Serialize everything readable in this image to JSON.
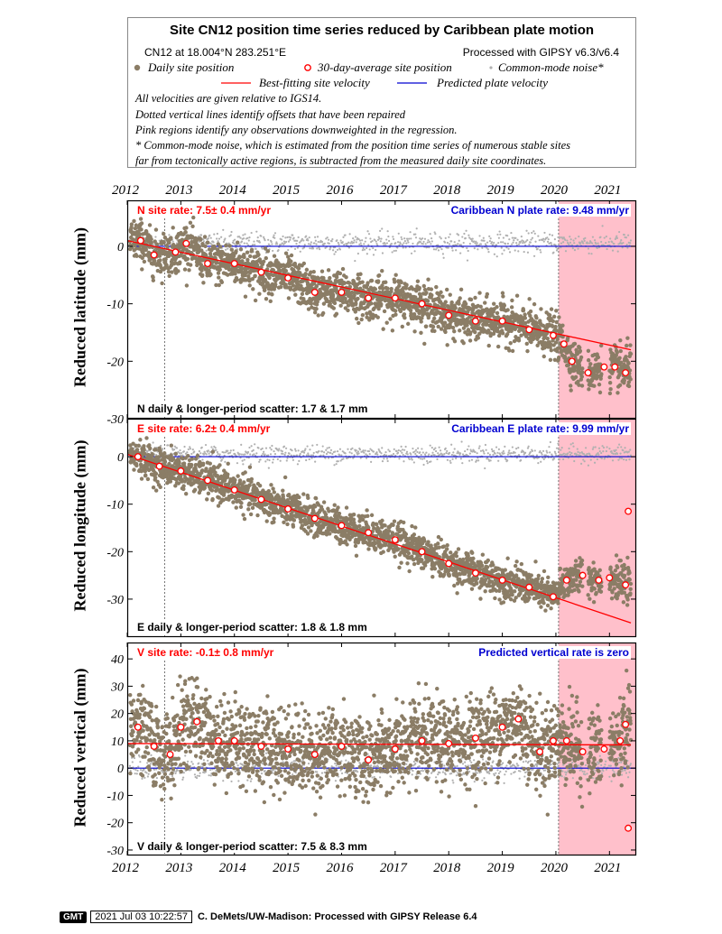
{
  "header": {
    "title": "Site CN12 position time series reduced by Caribbean plate motion",
    "location": "CN12 at 18.004°N 283.251°E",
    "processing": "Processed with GIPSY v6.3/v6.4",
    "legend": {
      "daily": "Daily site position",
      "avg": "30-day-average site position",
      "cmn": "Common-mode noise*",
      "best": "Best-fitting site velocity",
      "pred": "Predicted plate velocity"
    },
    "notes": [
      "All velocities are given relative to IGS14.",
      "Dotted vertical lines identify offsets that have been repaired",
      "Pink regions identify any observations downweighted in the regression.",
      "* Common-mode noise, which is estimated from the position time series of numerous stable sites",
      "far from tectonically active regions, is subtracted from the measured daily site coordinates."
    ]
  },
  "years": [
    "2012",
    "2013",
    "2014",
    "2015",
    "2016",
    "2017",
    "2018",
    "2019",
    "2020",
    "2021"
  ],
  "footer": {
    "logo": "GMT",
    "timestamp": "2021 Jul 03 10:22:57",
    "credit": "C. DeMets/UW-Madison: Processed with GIPSY Release 6.4"
  },
  "colors": {
    "daily": "#8b7d66",
    "avg_edge": "#ff0000",
    "cmn": "#b0b0b0",
    "best": "#ff0000",
    "pred": "#0000d0",
    "pink": "#ffc0cb"
  },
  "chart_data": [
    {
      "type": "scatter",
      "component": "N",
      "ylabel": "Reduced latitude (mm)",
      "ylim": [
        -30,
        8
      ],
      "yticks": [
        0,
        -10,
        -20,
        -30
      ],
      "xlim": [
        2012.0,
        2021.5
      ],
      "site_rate": "N site rate:  7.5± 0.4 mm/yr",
      "plate_rate": "Caribbean N plate rate: 9.48 mm/yr",
      "scatter": "N daily & longer-period scatter:   1.7 &   1.7 mm",
      "best_fit": {
        "x": [
          2012.0,
          2021.4
        ],
        "y": [
          1.0,
          -18.0
        ]
      },
      "predicted": {
        "x": [
          2012.0,
          2021.5
        ],
        "y": [
          0,
          0
        ]
      },
      "offset_epoch": 2012.7,
      "downweight": [
        2020.05,
        2021.5
      ],
      "avg_points": {
        "x": [
          2012.25,
          2012.5,
          2012.9,
          2013.1,
          2013.5,
          2014.0,
          2014.5,
          2015.0,
          2015.5,
          2016.0,
          2016.5,
          2017.0,
          2017.5,
          2018.0,
          2018.5,
          2019.0,
          2019.5,
          2019.95,
          2020.15,
          2020.3,
          2020.6,
          2020.9,
          2021.1,
          2021.3
        ],
        "y": [
          1.0,
          -1.5,
          -1.0,
          0.5,
          -3.0,
          -3.0,
          -4.5,
          -5.5,
          -8.0,
          -8.0,
          -9.0,
          -9.0,
          -10.0,
          -12.0,
          -13.0,
          -13.0,
          -14.5,
          -15.5,
          -17.0,
          -20.0,
          -22.0,
          -21.0,
          -21.0,
          -22.0
        ]
      }
    },
    {
      "type": "scatter",
      "component": "E",
      "ylabel": "Reduced longitude (mm)",
      "ylim": [
        -38,
        8
      ],
      "yticks": [
        0,
        -10,
        -20,
        -30
      ],
      "xlim": [
        2012.0,
        2021.5
      ],
      "site_rate": "E site rate:  6.2± 0.4 mm/yr",
      "plate_rate": "Caribbean E plate rate: 9.99 mm/yr",
      "scatter": "E daily & longer-period scatter:   1.8 &   1.8 mm",
      "best_fit": {
        "x": [
          2012.0,
          2021.4
        ],
        "y": [
          0.5,
          -35.0
        ]
      },
      "predicted": {
        "x": [
          2012.0,
          2021.5
        ],
        "y": [
          0,
          0
        ]
      },
      "offset_epoch": 2012.7,
      "downweight": [
        2020.05,
        2021.5
      ],
      "avg_points": {
        "x": [
          2012.2,
          2012.6,
          2013.0,
          2013.5,
          2014.0,
          2014.5,
          2015.0,
          2015.5,
          2016.0,
          2016.5,
          2017.0,
          2017.5,
          2018.0,
          2018.5,
          2019.0,
          2019.5,
          2019.95,
          2020.2,
          2020.5,
          2020.8,
          2021.0,
          2021.3,
          2021.35
        ],
        "y": [
          0.0,
          -2.0,
          -3.0,
          -5.0,
          -7.0,
          -9.0,
          -11.0,
          -13.0,
          -14.5,
          -16.0,
          -17.5,
          -20.0,
          -22.5,
          -24.5,
          -26.0,
          -27.5,
          -29.5,
          -26.0,
          -25.0,
          -26.0,
          -25.5,
          -27.0,
          -11.5
        ]
      }
    },
    {
      "type": "scatter",
      "component": "V",
      "ylabel": "Reduced vertical (mm)",
      "ylim": [
        -32,
        46
      ],
      "yticks": [
        40,
        30,
        20,
        10,
        0,
        -10,
        -20,
        -30
      ],
      "xlim": [
        2012.0,
        2021.5
      ],
      "site_rate": "V site rate:  -0.1± 0.8 mm/yr",
      "plate_rate": "Predicted vertical rate is zero",
      "scatter": "V daily & longer-period scatter:   7.5 &   8.3 mm",
      "best_fit": {
        "x": [
          2012.0,
          2021.4
        ],
        "y": [
          9.0,
          8.5
        ]
      },
      "predicted": {
        "x": [
          2012.0,
          2021.5
        ],
        "y": [
          0,
          0
        ]
      },
      "offset_epoch": 2012.7,
      "downweight": [
        2020.05,
        2021.5
      ],
      "avg_points": {
        "x": [
          2012.2,
          2012.5,
          2012.8,
          2013.0,
          2013.3,
          2013.7,
          2014.0,
          2014.5,
          2015.0,
          2015.5,
          2016.0,
          2016.5,
          2017.0,
          2017.5,
          2018.0,
          2018.5,
          2019.0,
          2019.3,
          2019.7,
          2019.95,
          2020.2,
          2020.5,
          2020.9,
          2021.2,
          2021.3,
          2021.35
        ],
        "y": [
          15.0,
          8.0,
          5.0,
          15.0,
          17.0,
          10.0,
          10.0,
          8.0,
          7.0,
          5.0,
          8.0,
          3.0,
          7.0,
          10.0,
          9.0,
          11.0,
          15.0,
          18.0,
          6.0,
          10.0,
          10.0,
          6.0,
          7.0,
          10.0,
          16.0,
          -22.0
        ]
      }
    }
  ]
}
